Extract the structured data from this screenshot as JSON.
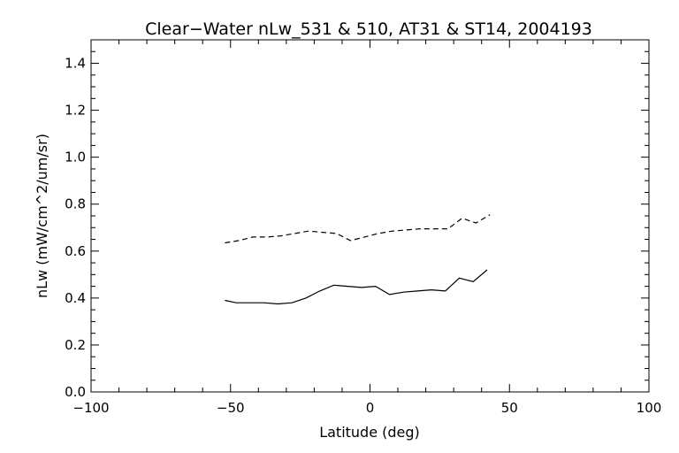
{
  "chart_data": {
    "type": "line",
    "title": "Clear−Water nLw_531 & 510, AT31 & ST14, 2004193",
    "xlabel": "Latitude (deg)",
    "ylabel": "nLw (mW/cm^2/um/sr)",
    "xlim": [
      -100,
      100
    ],
    "ylim": [
      0.0,
      1.5
    ],
    "x_ticks": [
      -100,
      -50,
      0,
      50,
      100
    ],
    "x_tick_labels": [
      "−100",
      "−50",
      "0",
      "50",
      "100"
    ],
    "y_ticks": [
      0.0,
      0.2,
      0.4,
      0.6,
      0.8,
      1.0,
      1.2,
      1.4
    ],
    "y_tick_labels": [
      "0.0",
      "0.2",
      "0.4",
      "0.6",
      "0.8",
      "1.0",
      "1.2",
      "1.4"
    ],
    "grid": false,
    "series": [
      {
        "style": "solid",
        "color": "#000000",
        "x": [
          -52,
          -48,
          -43,
          -38,
          -33,
          -28,
          -23,
          -18,
          -13,
          -8,
          -3,
          2,
          7,
          12,
          17,
          22,
          27,
          32,
          37,
          42
        ],
        "y": [
          0.39,
          0.38,
          0.38,
          0.38,
          0.375,
          0.38,
          0.4,
          0.43,
          0.455,
          0.45,
          0.445,
          0.45,
          0.415,
          0.425,
          0.43,
          0.435,
          0.43,
          0.485,
          0.47,
          0.52
        ]
      },
      {
        "style": "dashed",
        "color": "#000000",
        "x": [
          -52,
          -47,
          -42,
          -37,
          -32,
          -27,
          -22,
          -17,
          -12,
          -7,
          -2,
          3,
          8,
          13,
          18,
          23,
          28,
          33,
          38,
          43
        ],
        "y": [
          0.635,
          0.645,
          0.66,
          0.66,
          0.665,
          0.675,
          0.685,
          0.68,
          0.675,
          0.645,
          0.66,
          0.675,
          0.685,
          0.69,
          0.695,
          0.695,
          0.695,
          0.74,
          0.72,
          0.755
        ]
      }
    ]
  }
}
